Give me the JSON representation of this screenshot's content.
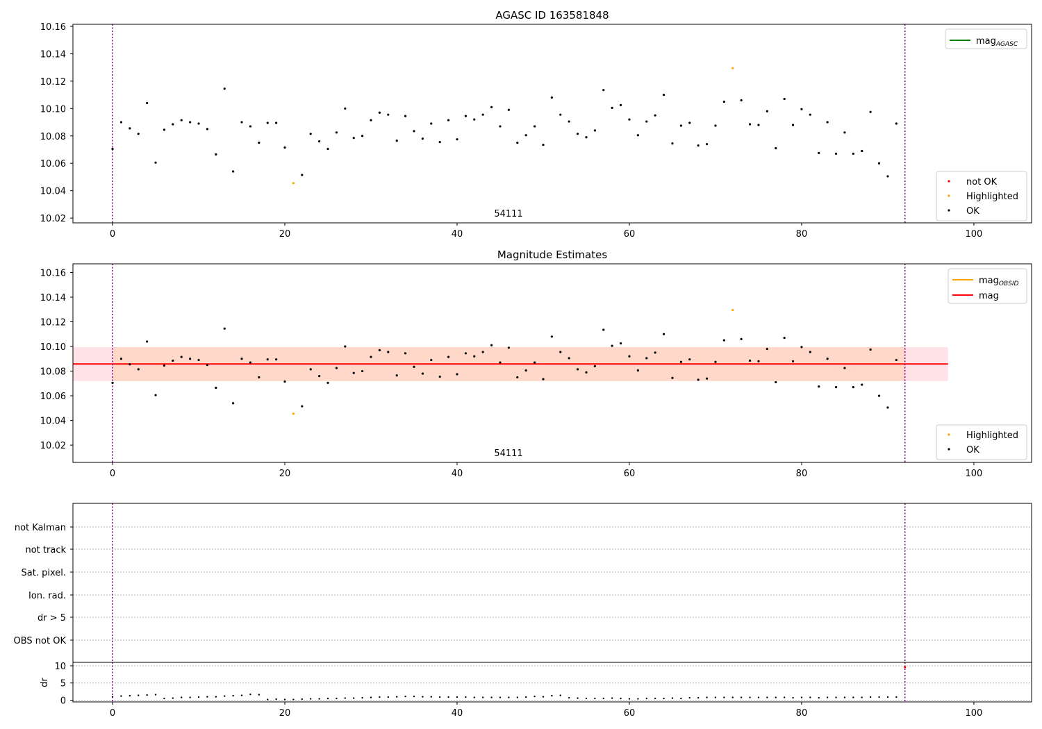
{
  "figure": {
    "panel1_title": "AGASC ID 163581848",
    "panel2_title": "Magnitude Estimates",
    "obsid_label": "54111"
  },
  "colors": {
    "ok": "#000000",
    "highlighted": "#ffa500",
    "not_ok": "#ff0000",
    "mag_agasc": "#008000",
    "mag_obsid": "#ffa500",
    "mag": "#ff0000",
    "mag_band": "#ffc0cb",
    "obsid_band": "#ffd0b0",
    "obs_boundary": "#800080"
  },
  "legends": {
    "panel1_lines": [
      {
        "label": "mag",
        "sub": "AGASC",
        "color": "#008000"
      }
    ],
    "panel1_points": [
      {
        "label": "not OK",
        "color": "#ff0000"
      },
      {
        "label": "Highlighted",
        "color": "#ffa500"
      },
      {
        "label": "OK",
        "color": "#000000"
      }
    ],
    "panel2_lines": [
      {
        "label": "mag",
        "sub": "OBSID",
        "color": "#ffa500"
      },
      {
        "label": "mag",
        "sub": "",
        "color": "#ff0000"
      }
    ],
    "panel2_points": [
      {
        "label": "Highlighted",
        "color": "#ffa500"
      },
      {
        "label": "OK",
        "color": "#000000"
      }
    ]
  },
  "chart_data": [
    {
      "type": "scatter",
      "title": "AGASC ID 163581848",
      "xlim": [
        -4.6,
        106.7
      ],
      "ylim": [
        10.0165,
        10.1615
      ],
      "x_ticks": [
        0,
        20,
        40,
        60,
        80,
        100
      ],
      "y_ticks": [
        10.02,
        10.04,
        10.06,
        10.08,
        10.1,
        10.12,
        10.14,
        10.16
      ],
      "y_tick_labels": [
        "10.02",
        "10.04",
        "10.06",
        "10.08",
        "10.10",
        "10.12",
        "10.14",
        "10.16"
      ],
      "obs_boundaries": [
        0,
        92
      ],
      "annotation": "54111",
      "highlighted_indices": [
        21,
        72
      ],
      "series": [
        {
          "name": "OK",
          "values": [
            10.0705,
            10.09,
            10.0855,
            10.0815,
            10.104,
            10.0605,
            10.0845,
            10.0885,
            10.0915,
            10.09,
            10.089,
            10.085,
            10.0665,
            10.1145,
            10.054,
            10.09,
            10.087,
            10.075,
            10.0895,
            10.0895,
            10.0715,
            10.0455,
            10.0515,
            10.0815,
            10.076,
            10.0705,
            10.0825,
            10.1,
            10.0785,
            10.08,
            10.0915,
            10.097,
            10.0955,
            10.0765,
            10.0945,
            10.0835,
            10.078,
            10.089,
            10.0755,
            10.0915,
            10.0775,
            10.0945,
            10.092,
            10.0955,
            10.101,
            10.087,
            10.099,
            10.075,
            10.0805,
            10.087,
            10.0735,
            10.108,
            10.0955,
            10.0905,
            10.0815,
            10.079,
            10.084,
            10.1135,
            10.1005,
            10.1025,
            10.092,
            10.0805,
            10.0905,
            10.095,
            10.11,
            10.0745,
            10.0875,
            10.0895,
            10.073,
            10.074,
            10.0875,
            10.105,
            10.1295,
            10.106,
            10.0885,
            10.088,
            10.098,
            10.071,
            10.107,
            10.088,
            10.0995,
            10.0955,
            10.0675,
            10.09,
            10.067,
            10.0825,
            10.067,
            10.069,
            10.0975,
            10.06,
            10.0505,
            10.089
          ]
        }
      ],
      "legend": [
        "mag_AGASC",
        "not OK",
        "Highlighted",
        "OK"
      ]
    },
    {
      "type": "scatter",
      "title": "Magnitude Estimates",
      "xlim": [
        -4.6,
        106.7
      ],
      "ylim": [
        10.006,
        10.167
      ],
      "x_ticks": [
        0,
        20,
        40,
        60,
        80,
        100
      ],
      "y_ticks": [
        10.02,
        10.04,
        10.06,
        10.08,
        10.1,
        10.12,
        10.14,
        10.16
      ],
      "y_tick_labels": [
        "10.02",
        "10.04",
        "10.06",
        "10.08",
        "10.10",
        "10.12",
        "10.14",
        "10.16"
      ],
      "obs_boundaries": [
        0,
        92
      ],
      "annotation": "54111",
      "mag": 10.0858,
      "mag_band": [
        10.072,
        10.0995
      ],
      "mag_band_x": [
        -4.6,
        97
      ],
      "obsid_band_x": [
        0,
        92
      ],
      "legend": [
        "mag_OBSID",
        "mag",
        "Highlighted",
        "OK"
      ]
    },
    {
      "type": "scatter",
      "title": "",
      "categories": [
        "not Kalman",
        "not track",
        "Sat. pixel.",
        "Ion. rad.",
        "dr > 5",
        "OBS not OK"
      ],
      "xlim": [
        -4.6,
        106.7
      ],
      "obs_boundaries": [
        0,
        92
      ],
      "flags": []
    },
    {
      "type": "scatter",
      "title": "",
      "ylabel": "dr",
      "xlim": [
        -4.6,
        106.7
      ],
      "ylim": [
        -0.5,
        11
      ],
      "x_ticks": [
        0,
        20,
        40,
        60,
        80,
        100
      ],
      "y_ticks": [
        0,
        5,
        10
      ],
      "y_tick_labels": [
        "0",
        "5",
        "10"
      ],
      "obs_boundaries": [
        0,
        92
      ],
      "dr_values": [
        1.0,
        1.2,
        1.3,
        1.4,
        1.5,
        1.6,
        0.5,
        0.6,
        0.8,
        0.8,
        0.9,
        1.0,
        1.0,
        1.2,
        1.3,
        1.4,
        1.7,
        1.6,
        0.2,
        0.3,
        0.2,
        0.2,
        0.3,
        0.4,
        0.4,
        0.5,
        0.5,
        0.6,
        0.6,
        0.7,
        0.8,
        0.9,
        0.9,
        1.0,
        1.1,
        1.1,
        1.0,
        1.0,
        0.9,
        0.9,
        0.9,
        0.9,
        0.8,
        0.8,
        0.8,
        0.8,
        0.8,
        0.8,
        0.9,
        1.1,
        1.0,
        1.3,
        1.4,
        0.7,
        0.6,
        0.5,
        0.5,
        0.5,
        0.6,
        0.5,
        0.4,
        0.4,
        0.5,
        0.5,
        0.5,
        0.6,
        0.5,
        0.7,
        0.7,
        0.8,
        0.8,
        0.8,
        0.8,
        0.8,
        0.8,
        0.8,
        0.8,
        0.8,
        0.8,
        0.7,
        0.8,
        0.8,
        0.7,
        0.8,
        0.8,
        0.8,
        0.8,
        0.8,
        0.9,
        0.9,
        0.9,
        0.9
      ],
      "dr_not_ok": [
        {
          "x": 92,
          "y": 9.6
        }
      ]
    }
  ]
}
